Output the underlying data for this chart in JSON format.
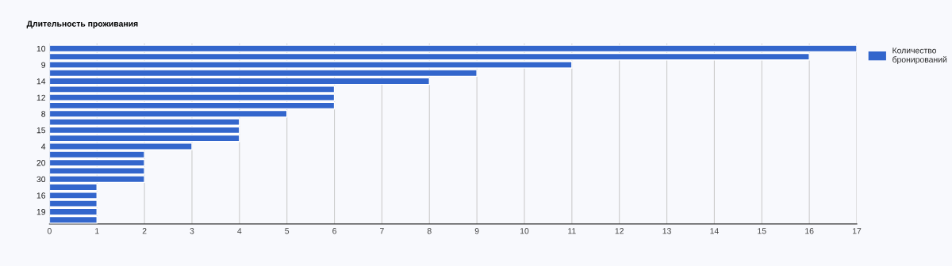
{
  "chart_data": {
    "type": "bar",
    "orientation": "horizontal",
    "title": "Длительность проживания",
    "categories": [
      "10",
      null,
      "9",
      null,
      "14",
      null,
      "12",
      null,
      "8",
      null,
      "15",
      null,
      "4",
      null,
      "20",
      null,
      "30",
      null,
      "16",
      null,
      "19",
      null
    ],
    "series": [
      {
        "name": "Количество бронирований",
        "color": "#3366cc",
        "values": [
          17,
          16,
          11,
          9,
          8,
          6,
          6,
          6,
          5,
          4,
          4,
          4,
          3,
          2,
          2,
          2,
          2,
          1,
          1,
          1,
          1,
          1
        ]
      }
    ],
    "xlim": [
      0,
      17
    ],
    "xticks": [
      0,
      1,
      2,
      3,
      4,
      5,
      6,
      7,
      8,
      9,
      10,
      11,
      12,
      13,
      14,
      15,
      16,
      17
    ],
    "grid": "x",
    "legend": "top right"
  }
}
